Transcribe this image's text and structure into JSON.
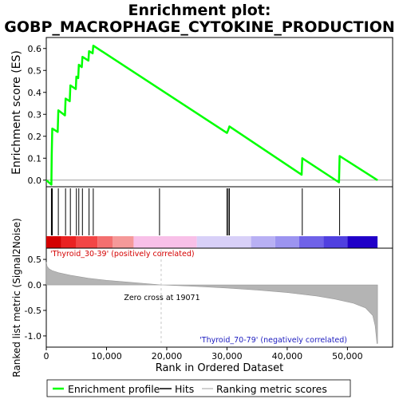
{
  "chart_data": {
    "type": "line",
    "title_line1": "Enrichment plot:",
    "title_line2": "GOBP_MACROPHAGE_CYTOKINE_PRODUCTION",
    "es_panel": {
      "ylabel": "Enrichment score (ES)",
      "ylim": [
        -0.03,
        0.65
      ],
      "yticks": [
        0.0,
        0.1,
        0.2,
        0.3,
        0.4,
        0.5,
        0.6
      ],
      "ytick_labels": [
        "0.0",
        "0.1",
        "0.2",
        "0.3",
        "0.4",
        "0.5",
        "0.6"
      ],
      "series": {
        "color": "#00ff00",
        "points": [
          [
            0,
            0.0
          ],
          [
            850,
            -0.02
          ],
          [
            900,
            0.11
          ],
          [
            1000,
            0.235
          ],
          [
            1900,
            0.22
          ],
          [
            2000,
            0.318
          ],
          [
            3100,
            0.295
          ],
          [
            3200,
            0.372
          ],
          [
            3900,
            0.36
          ],
          [
            4000,
            0.432
          ],
          [
            4900,
            0.415
          ],
          [
            5000,
            0.472
          ],
          [
            5300,
            0.465
          ],
          [
            5400,
            0.526
          ],
          [
            5900,
            0.515
          ],
          [
            6000,
            0.562
          ],
          [
            7000,
            0.545
          ],
          [
            7100,
            0.588
          ],
          [
            7700,
            0.578
          ],
          [
            7800,
            0.613
          ],
          [
            30000,
            0.215
          ],
          [
            30200,
            0.228
          ],
          [
            30400,
            0.245
          ],
          [
            42400,
            0.025
          ],
          [
            42500,
            0.1
          ],
          [
            48600,
            -0.01
          ],
          [
            48700,
            0.11
          ],
          [
            55000,
            0.0
          ]
        ]
      }
    },
    "hits": [
      850,
      900,
      1000,
      2000,
      3200,
      4000,
      5000,
      5400,
      6000,
      7100,
      7800,
      18800,
      30000,
      30200,
      30400,
      42500,
      48700
    ],
    "heatmap_colors": [
      "#d40000",
      "#ea2222",
      "#f24646",
      "#f36f6f",
      "#f59999",
      "#f8c0e8",
      "#d8d0f8",
      "#b8b0f4",
      "#9c94f0",
      "#6f62e8",
      "#5040e0",
      "#2000c8"
    ],
    "heatmap_breaks": [
      0,
      2500,
      5000,
      8500,
      11000,
      14500,
      25000,
      34000,
      38000,
      42000,
      46000,
      50000,
      55000
    ],
    "metric_panel": {
      "ylabel": "Ranked list metric (Signal2Noise)",
      "ylim": [
        -1.22,
        0.72
      ],
      "yticks": [
        0.5,
        0.0,
        -0.5,
        -1.0
      ],
      "ytick_labels": [
        "0.5",
        "0.0",
        "-0.5",
        "-1.0"
      ],
      "zero_cross": 19071,
      "zero_cross_label": "Zero cross at 19071",
      "pos_label": "'Thyroid_30-39' (positively correlated)",
      "neg_label": "'Thyroid_70-79' (negatively correlated)",
      "profile": [
        [
          0,
          0.45
        ],
        [
          150,
          0.36
        ],
        [
          500,
          0.31
        ],
        [
          1000,
          0.28
        ],
        [
          2000,
          0.24
        ],
        [
          4000,
          0.19
        ],
        [
          7000,
          0.13
        ],
        [
          10000,
          0.09
        ],
        [
          14000,
          0.05
        ],
        [
          19071,
          0.0
        ],
        [
          25000,
          -0.03
        ],
        [
          30000,
          -0.06
        ],
        [
          35000,
          -0.1
        ],
        [
          40000,
          -0.15
        ],
        [
          45000,
          -0.22
        ],
        [
          48000,
          -0.28
        ],
        [
          51000,
          -0.36
        ],
        [
          53000,
          -0.45
        ],
        [
          54200,
          -0.6
        ],
        [
          54600,
          -0.8
        ],
        [
          54900,
          -1.15
        ],
        [
          55000,
          -1.15
        ]
      ]
    },
    "x_axis": {
      "xlabel": "Rank in Ordered Dataset",
      "xlim": [
        0,
        57500
      ],
      "ticks": [
        0,
        10000,
        20000,
        30000,
        40000,
        50000
      ],
      "tick_labels": [
        "0",
        "10,000",
        "20,000",
        "30,000",
        "40,000",
        "50,000"
      ]
    },
    "legend": {
      "placement": "bottom",
      "entries": [
        "Enrichment profile",
        "Hits",
        "Ranking metric scores"
      ]
    }
  }
}
